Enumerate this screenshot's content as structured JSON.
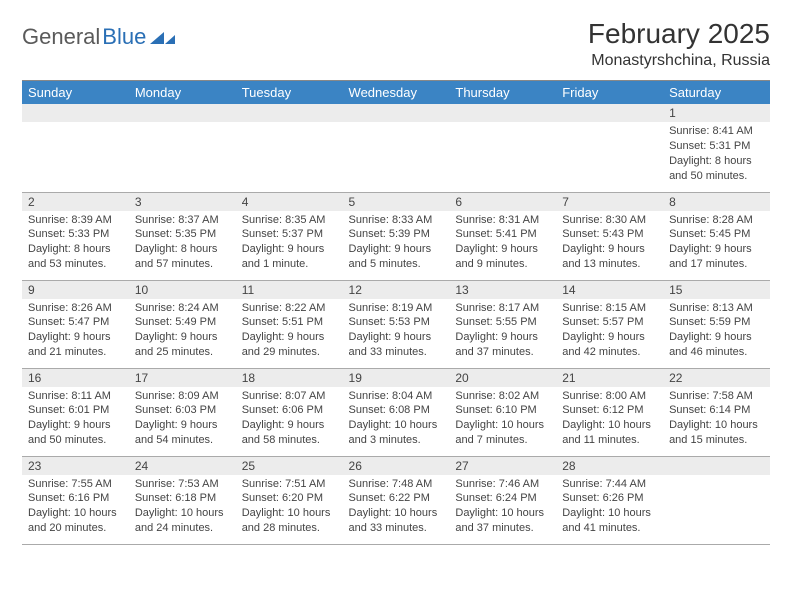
{
  "brand": {
    "part1": "General",
    "part2": "Blue"
  },
  "title": "February 2025",
  "location": "Monastyrshchina, Russia",
  "colors": {
    "header_bg": "#3b84c4",
    "header_text": "#ffffff",
    "daynum_bg": "#ececec",
    "text": "#444444",
    "rule": "#999999",
    "brand_blue": "#2a6fb5"
  },
  "weekdays": [
    "Sunday",
    "Monday",
    "Tuesday",
    "Wednesday",
    "Thursday",
    "Friday",
    "Saturday"
  ],
  "weeks": [
    [
      null,
      null,
      null,
      null,
      null,
      null,
      {
        "n": "1",
        "sunrise": "8:41 AM",
        "sunset": "5:31 PM",
        "daylight": "8 hours and 50 minutes."
      }
    ],
    [
      {
        "n": "2",
        "sunrise": "8:39 AM",
        "sunset": "5:33 PM",
        "daylight": "8 hours and 53 minutes."
      },
      {
        "n": "3",
        "sunrise": "8:37 AM",
        "sunset": "5:35 PM",
        "daylight": "8 hours and 57 minutes."
      },
      {
        "n": "4",
        "sunrise": "8:35 AM",
        "sunset": "5:37 PM",
        "daylight": "9 hours and 1 minute."
      },
      {
        "n": "5",
        "sunrise": "8:33 AM",
        "sunset": "5:39 PM",
        "daylight": "9 hours and 5 minutes."
      },
      {
        "n": "6",
        "sunrise": "8:31 AM",
        "sunset": "5:41 PM",
        "daylight": "9 hours and 9 minutes."
      },
      {
        "n": "7",
        "sunrise": "8:30 AM",
        "sunset": "5:43 PM",
        "daylight": "9 hours and 13 minutes."
      },
      {
        "n": "8",
        "sunrise": "8:28 AM",
        "sunset": "5:45 PM",
        "daylight": "9 hours and 17 minutes."
      }
    ],
    [
      {
        "n": "9",
        "sunrise": "8:26 AM",
        "sunset": "5:47 PM",
        "daylight": "9 hours and 21 minutes."
      },
      {
        "n": "10",
        "sunrise": "8:24 AM",
        "sunset": "5:49 PM",
        "daylight": "9 hours and 25 minutes."
      },
      {
        "n": "11",
        "sunrise": "8:22 AM",
        "sunset": "5:51 PM",
        "daylight": "9 hours and 29 minutes."
      },
      {
        "n": "12",
        "sunrise": "8:19 AM",
        "sunset": "5:53 PM",
        "daylight": "9 hours and 33 minutes."
      },
      {
        "n": "13",
        "sunrise": "8:17 AM",
        "sunset": "5:55 PM",
        "daylight": "9 hours and 37 minutes."
      },
      {
        "n": "14",
        "sunrise": "8:15 AM",
        "sunset": "5:57 PM",
        "daylight": "9 hours and 42 minutes."
      },
      {
        "n": "15",
        "sunrise": "8:13 AM",
        "sunset": "5:59 PM",
        "daylight": "9 hours and 46 minutes."
      }
    ],
    [
      {
        "n": "16",
        "sunrise": "8:11 AM",
        "sunset": "6:01 PM",
        "daylight": "9 hours and 50 minutes."
      },
      {
        "n": "17",
        "sunrise": "8:09 AM",
        "sunset": "6:03 PM",
        "daylight": "9 hours and 54 minutes."
      },
      {
        "n": "18",
        "sunrise": "8:07 AM",
        "sunset": "6:06 PM",
        "daylight": "9 hours and 58 minutes."
      },
      {
        "n": "19",
        "sunrise": "8:04 AM",
        "sunset": "6:08 PM",
        "daylight": "10 hours and 3 minutes."
      },
      {
        "n": "20",
        "sunrise": "8:02 AM",
        "sunset": "6:10 PM",
        "daylight": "10 hours and 7 minutes."
      },
      {
        "n": "21",
        "sunrise": "8:00 AM",
        "sunset": "6:12 PM",
        "daylight": "10 hours and 11 minutes."
      },
      {
        "n": "22",
        "sunrise": "7:58 AM",
        "sunset": "6:14 PM",
        "daylight": "10 hours and 15 minutes."
      }
    ],
    [
      {
        "n": "23",
        "sunrise": "7:55 AM",
        "sunset": "6:16 PM",
        "daylight": "10 hours and 20 minutes."
      },
      {
        "n": "24",
        "sunrise": "7:53 AM",
        "sunset": "6:18 PM",
        "daylight": "10 hours and 24 minutes."
      },
      {
        "n": "25",
        "sunrise": "7:51 AM",
        "sunset": "6:20 PM",
        "daylight": "10 hours and 28 minutes."
      },
      {
        "n": "26",
        "sunrise": "7:48 AM",
        "sunset": "6:22 PM",
        "daylight": "10 hours and 33 minutes."
      },
      {
        "n": "27",
        "sunrise": "7:46 AM",
        "sunset": "6:24 PM",
        "daylight": "10 hours and 37 minutes."
      },
      {
        "n": "28",
        "sunrise": "7:44 AM",
        "sunset": "6:26 PM",
        "daylight": "10 hours and 41 minutes."
      },
      null
    ]
  ],
  "labels": {
    "sunrise": "Sunrise:",
    "sunset": "Sunset:",
    "daylight": "Daylight:"
  }
}
